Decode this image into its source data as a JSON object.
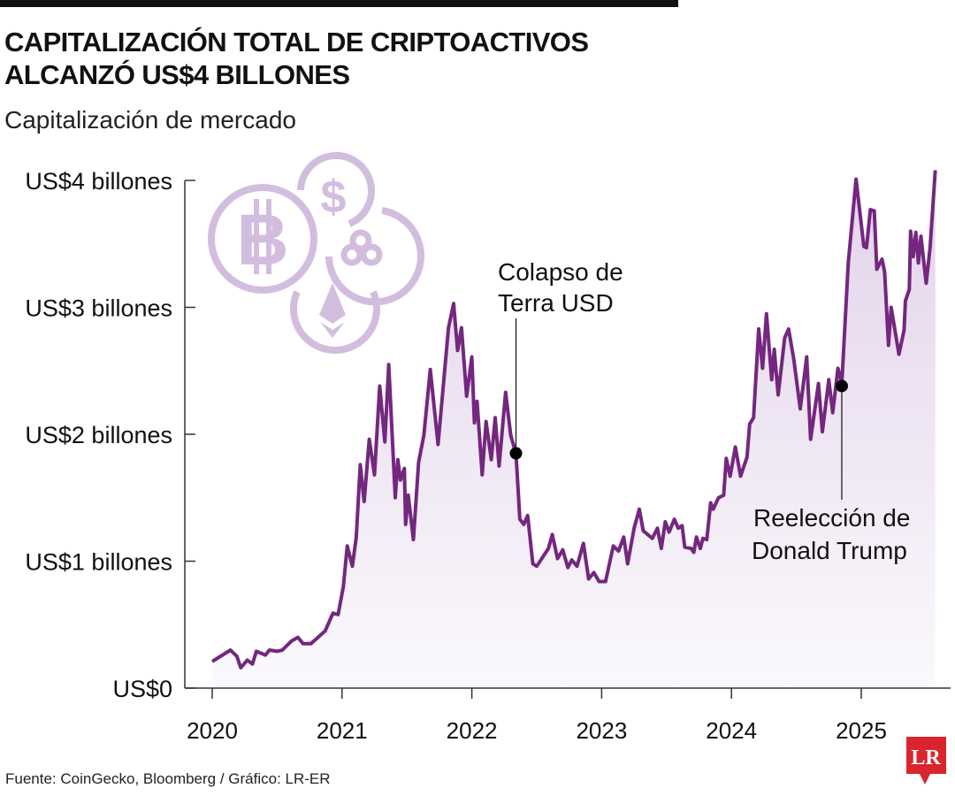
{
  "header": {
    "title_line1": "CAPITALIZACIÓN  TOTAL DE CRIPTOACTIVOS",
    "title_line2": "ALCANZÓ US$4 BILLONES",
    "subtitle": "Capitalización de mercado"
  },
  "footer": {
    "source": "Fuente: CoinGecko, Bloomberg / Gráfico: LR-ER",
    "logo_text": "LR"
  },
  "icons": [
    "bitcoin-coin-icon",
    "dollar-coin-icon",
    "crypto-coin-icon",
    "ethereum-coin-icon"
  ],
  "colors": {
    "line": "#74277f",
    "fill_top": "#e4d6ec",
    "icon": "#d3bddf",
    "logo": "#d9262e"
  },
  "chart_data": {
    "type": "area",
    "title": "CAPITALIZACIÓN  TOTAL DE CRIPTOACTIVOS ALCANZÓ US$4 BILLONES",
    "ylabel": "Capitalización de mercado",
    "xlabel": "",
    "xlim": [
      2020,
      2025.6
    ],
    "ylim": [
      0,
      4
    ],
    "grid": false,
    "x_ticks": [
      "2020",
      "2021",
      "2022",
      "2023",
      "2024",
      "2025"
    ],
    "y_ticks": [
      {
        "value": 0,
        "label": "US$0"
      },
      {
        "value": 1,
        "label": "US$1 billones"
      },
      {
        "value": 2,
        "label": "US$2 billones"
      },
      {
        "value": 3,
        "label": "US$3 billones"
      },
      {
        "value": 4,
        "label": "US$4 billones"
      }
    ],
    "series": [
      {
        "x": [
          2020.0,
          2020.14,
          2020.19,
          2020.22,
          2020.27,
          2020.31,
          2020.34,
          2020.41,
          2020.44,
          2020.5,
          2020.54,
          2020.61,
          2020.66,
          2020.7,
          2020.76,
          2020.87,
          2020.93,
          2020.97,
          2021.01,
          2021.04,
          2021.08,
          2021.11,
          2021.14,
          2021.17,
          2021.21,
          2021.25,
          2021.29,
          2021.33,
          2021.36,
          2021.41,
          2021.43,
          2021.45,
          2021.48,
          2021.49,
          2021.51,
          2021.55,
          2021.59,
          2021.63,
          2021.68,
          2021.74,
          2021.82,
          2021.86,
          2021.89,
          2021.92,
          2021.96,
          2022.0,
          2022.02,
          2022.04,
          2022.08,
          2022.11,
          2022.15,
          2022.18,
          2022.21,
          2022.26,
          2022.3,
          2022.34,
          2022.37,
          2022.4,
          2022.43,
          2022.47,
          2022.5,
          2022.59,
          2022.62,
          2022.66,
          2022.7,
          2022.74,
          2022.77,
          2022.81,
          2022.86,
          2022.9,
          2022.94,
          2022.98,
          2023.03,
          2023.09,
          2023.13,
          2023.17,
          2023.2,
          2023.25,
          2023.29,
          2023.32,
          2023.39,
          2023.43,
          2023.46,
          2023.49,
          2023.52,
          2023.56,
          2023.59,
          2023.62,
          2023.64,
          2023.69,
          2023.71,
          2023.73,
          2023.76,
          2023.78,
          2023.81,
          2023.84,
          2023.86,
          2023.9,
          2023.94,
          2023.96,
          2023.99,
          2024.03,
          2024.07,
          2024.12,
          2024.14,
          2024.17,
          2024.21,
          2024.24,
          2024.27,
          2024.31,
          2024.33,
          2024.36,
          2024.41,
          2024.44,
          2024.48,
          2024.53,
          2024.58,
          2024.61,
          2024.67,
          2024.7,
          2024.75,
          2024.78,
          2024.82,
          2024.85,
          2024.9,
          2024.96,
          2025.02,
          2025.04,
          2025.07,
          2025.1,
          2025.12,
          2025.16,
          2025.18,
          2025.21,
          2025.23,
          2025.29,
          2025.33,
          2025.34,
          2025.37,
          2025.38,
          2025.4,
          2025.42,
          2025.44,
          2025.46,
          2025.5,
          2025.53,
          2025.57
        ],
        "y": [
          0.21,
          0.3,
          0.25,
          0.16,
          0.22,
          0.19,
          0.29,
          0.26,
          0.3,
          0.29,
          0.3,
          0.37,
          0.4,
          0.35,
          0.35,
          0.45,
          0.59,
          0.58,
          0.8,
          1.12,
          0.96,
          1.19,
          1.76,
          1.47,
          1.96,
          1.68,
          2.38,
          1.94,
          2.55,
          1.5,
          1.8,
          1.64,
          1.73,
          1.29,
          1.52,
          1.17,
          1.78,
          1.99,
          2.51,
          1.92,
          2.84,
          3.03,
          2.66,
          2.84,
          2.3,
          2.61,
          2.09,
          2.26,
          1.68,
          2.1,
          1.8,
          2.13,
          1.75,
          2.33,
          1.99,
          1.85,
          1.33,
          1.29,
          1.36,
          0.98,
          0.96,
          1.1,
          1.21,
          1.02,
          1.09,
          0.95,
          1.01,
          0.96,
          1.14,
          0.86,
          0.91,
          0.84,
          0.84,
          1.12,
          1.08,
          1.19,
          0.98,
          1.26,
          1.41,
          1.24,
          1.18,
          1.26,
          1.1,
          1.31,
          1.23,
          1.33,
          1.26,
          1.28,
          1.11,
          1.1,
          1.07,
          1.19,
          1.1,
          1.18,
          1.17,
          1.46,
          1.41,
          1.5,
          1.52,
          1.81,
          1.67,
          1.9,
          1.67,
          1.82,
          2.08,
          2.13,
          2.83,
          2.52,
          2.95,
          2.43,
          2.67,
          2.31,
          2.76,
          2.83,
          2.59,
          2.2,
          2.61,
          1.96,
          2.4,
          2.02,
          2.43,
          2.17,
          2.52,
          2.4,
          3.35,
          4.01,
          3.48,
          3.47,
          3.77,
          3.76,
          3.3,
          3.38,
          3.28,
          2.7,
          3.0,
          2.63,
          2.82,
          3.05,
          3.14,
          3.6,
          3.4,
          3.59,
          3.35,
          3.56,
          3.19,
          3.47,
          4.08
        ]
      }
    ],
    "annotations": [
      {
        "x": 2022.34,
        "y": 1.85,
        "line1": "Colapso de",
        "line2": "Terra USD"
      },
      {
        "x": 2024.85,
        "y": 2.38,
        "line1": "Reelección de",
        "line2": "Donald Trump"
      }
    ]
  }
}
